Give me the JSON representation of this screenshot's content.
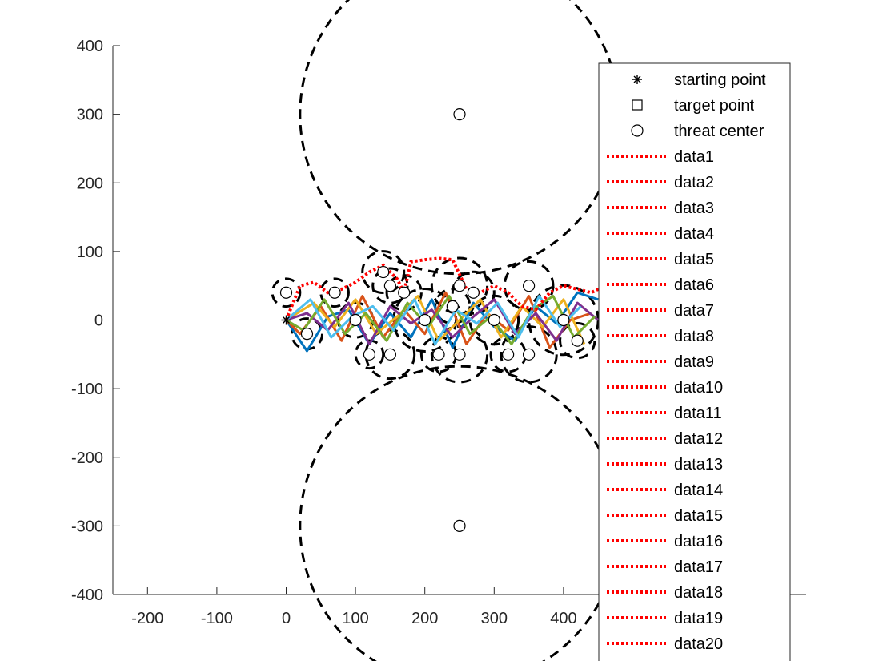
{
  "chart_data": {
    "type": "line",
    "xlim": [
      -250,
      750
    ],
    "ylim": [
      -400,
      400
    ],
    "xticks": [
      -200,
      -100,
      0,
      100,
      200,
      300,
      400
    ],
    "yticks": [
      400,
      300,
      200,
      100,
      0,
      -100,
      -200,
      -300,
      -400
    ],
    "xtick_labels": [
      "-200",
      "-100",
      "0",
      "100",
      "200",
      "300",
      "400"
    ],
    "ytick_labels": [
      "400",
      "300",
      "200",
      "100",
      "0",
      "-100",
      "-200",
      "-300",
      "-400"
    ],
    "grid": false,
    "legend_position": "right (partially covering plot)",
    "starting_point": {
      "x": 0,
      "y": 0
    },
    "threat_centers": [
      {
        "x": 0,
        "y": 40,
        "r": 20
      },
      {
        "x": 30,
        "y": -20,
        "r": 22
      },
      {
        "x": 70,
        "y": 40,
        "r": 20
      },
      {
        "x": 100,
        "y": 0,
        "r": 25
      },
      {
        "x": 120,
        "y": -50,
        "r": 20
      },
      {
        "x": 140,
        "y": 70,
        "r": 30
      },
      {
        "x": 150,
        "y": 50,
        "r": 25
      },
      {
        "x": 150,
        "y": -50,
        "r": 35
      },
      {
        "x": 170,
        "y": 40,
        "r": 25
      },
      {
        "x": 200,
        "y": 0,
        "r": 45
      },
      {
        "x": 220,
        "y": -50,
        "r": 25
      },
      {
        "x": 240,
        "y": 20,
        "r": 25
      },
      {
        "x": 250,
        "y": 50,
        "r": 40
      },
      {
        "x": 250,
        "y": -50,
        "r": 40
      },
      {
        "x": 270,
        "y": 40,
        "r": 30
      },
      {
        "x": 300,
        "y": 0,
        "r": 35
      },
      {
        "x": 320,
        "y": -50,
        "r": 25
      },
      {
        "x": 350,
        "y": 50,
        "r": 35
      },
      {
        "x": 350,
        "y": -50,
        "r": 40
      },
      {
        "x": 400,
        "y": 0,
        "r": 50
      },
      {
        "x": 420,
        "y": -30,
        "r": 25
      },
      {
        "x": 250,
        "y": 300,
        "r": 230
      },
      {
        "x": 250,
        "y": -300,
        "r": 230
      }
    ],
    "series_colors": [
      "#0072BD",
      "#D95319",
      "#EDB120",
      "#7E2F8E",
      "#77AC30",
      "#4DBEEE"
    ],
    "paths": [
      {
        "x": [
          0,
          30,
          60,
          90,
          120,
          150,
          180,
          210,
          240,
          270,
          300,
          330,
          360,
          390,
          420,
          450
        ],
        "y": [
          0,
          -45,
          5,
          15,
          -35,
          10,
          -25,
          30,
          -40,
          25,
          -10,
          -30,
          20,
          -5,
          40,
          30
        ]
      },
      {
        "x": [
          0,
          20,
          50,
          80,
          110,
          140,
          170,
          200,
          230,
          260,
          290,
          320,
          350,
          380,
          410,
          440
        ],
        "y": [
          0,
          -20,
          20,
          -30,
          35,
          -25,
          15,
          -20,
          40,
          -35,
          10,
          -15,
          35,
          -40,
          0,
          10
        ]
      },
      {
        "x": [
          0,
          40,
          70,
          100,
          130,
          160,
          190,
          220,
          250,
          280,
          310,
          340,
          370,
          400,
          430
        ],
        "y": [
          0,
          25,
          -10,
          30,
          -20,
          5,
          35,
          -30,
          0,
          30,
          -25,
          20,
          -10,
          30,
          -35
        ]
      },
      {
        "x": [
          0,
          30,
          60,
          90,
          120,
          150,
          180,
          210,
          240,
          270,
          300,
          330,
          360,
          390,
          420,
          450
        ],
        "y": [
          0,
          10,
          -15,
          25,
          -35,
          20,
          -5,
          15,
          -25,
          5,
          30,
          -20,
          10,
          -30,
          25,
          0
        ]
      },
      {
        "x": [
          0,
          25,
          55,
          85,
          115,
          145,
          175,
          205,
          235,
          265,
          295,
          325,
          355,
          385,
          415,
          445
        ],
        "y": [
          0,
          -15,
          30,
          -20,
          10,
          -30,
          25,
          -10,
          35,
          -20,
          5,
          -35,
          15,
          35,
          -25,
          5
        ]
      },
      {
        "x": [
          0,
          35,
          65,
          95,
          125,
          155,
          185,
          215,
          245,
          275,
          305,
          335,
          365,
          395,
          425
        ],
        "y": [
          0,
          30,
          -25,
          5,
          20,
          -15,
          30,
          -35,
          15,
          -5,
          25,
          -25,
          35,
          -10,
          20
        ]
      }
    ],
    "data_paths": [
      {
        "x": [
          0,
          20,
          40,
          60,
          80,
          100,
          120,
          140,
          160,
          170,
          180,
          200,
          220,
          240,
          260,
          280,
          300,
          320,
          340,
          360,
          380,
          400,
          420,
          440,
          460,
          480
        ],
        "y": [
          0,
          50,
          55,
          40,
          45,
          55,
          70,
          80,
          60,
          40,
          85,
          88,
          90,
          88,
          45,
          40,
          50,
          40,
          20,
          15,
          40,
          50,
          45,
          40,
          50,
          65
        ]
      }
    ],
    "legend": {
      "markers": [
        {
          "marker": "*",
          "label": "starting point"
        },
        {
          "marker": "square",
          "label": "target point"
        },
        {
          "marker": "circle",
          "label": "threat center"
        }
      ],
      "lines": [
        "data1",
        "data2",
        "data3",
        "data4",
        "data5",
        "data6",
        "data7",
        "data8",
        "data9",
        "data10",
        "data11",
        "data12",
        "data13",
        "data14",
        "data15",
        "data16",
        "data17",
        "data18",
        "data19",
        "data20"
      ],
      "line_color": "#FF0000"
    }
  }
}
